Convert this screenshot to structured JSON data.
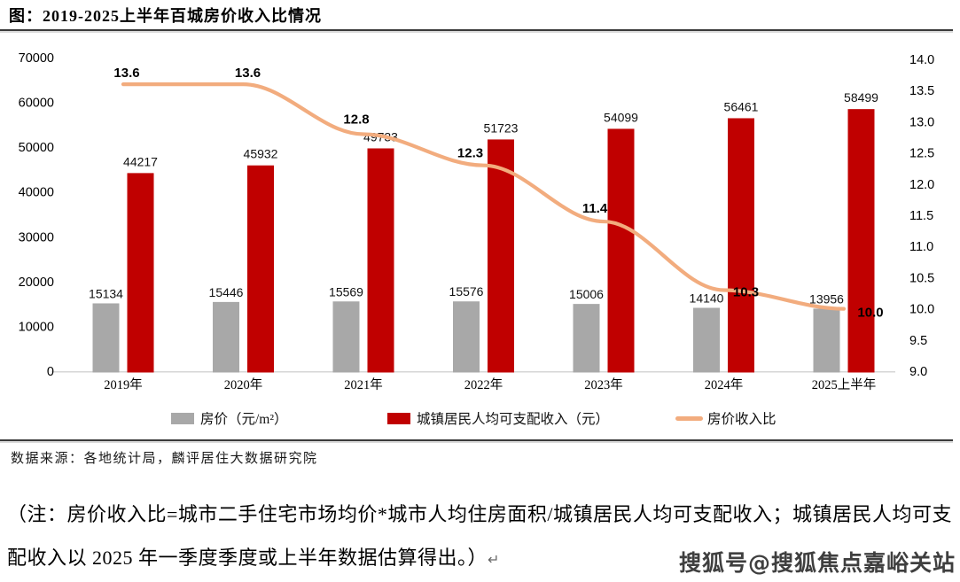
{
  "header": {
    "title": "图：2019-2025上半年百城房价收入比情况"
  },
  "chart_data": {
    "type": "bar",
    "subtype": "grouped-bar-with-line",
    "title": "2019-2025上半年百城房价收入比情况",
    "categories": [
      "2019年",
      "2020年",
      "2021年",
      "2022年",
      "2023年",
      "2024年",
      "2025上半年"
    ],
    "series": [
      {
        "name": "房价（元/m²）",
        "type": "bar",
        "axis": "left",
        "color": "#A8A8A8",
        "values": [
          15134,
          15446,
          15569,
          15576,
          15006,
          14140,
          13956
        ]
      },
      {
        "name": "城镇居民人均可支配收入（元）",
        "type": "bar",
        "axis": "left",
        "color": "#C00000",
        "values": [
          44217,
          45932,
          49733,
          51723,
          54099,
          56461,
          58499
        ]
      },
      {
        "name": "房价收入比",
        "type": "line",
        "axis": "right",
        "color": "#F2AC7E",
        "values": [
          13.6,
          13.6,
          12.8,
          12.3,
          11.4,
          10.3,
          10.0
        ]
      }
    ],
    "left_axis": {
      "min": 0,
      "max": 70000,
      "step": 10000
    },
    "right_axis": {
      "min": 9.0,
      "max": 14.0,
      "step": 0.5
    },
    "grid": false,
    "legend_position": "bottom"
  },
  "source": {
    "text": "数据来源：各地统计局，麟评居住大数据研究院"
  },
  "note": {
    "text": "（注：房价收入比=城市二手住宅市场均价*城市人均住房面积/城镇居民人均可支配收入；城镇居民人均可支配收入以 2025 年一季度季度或上半年数据估算得出。）",
    "return_mark": "↵"
  },
  "watermark": {
    "text": "搜狐号@搜狐焦点嘉峪关站"
  }
}
